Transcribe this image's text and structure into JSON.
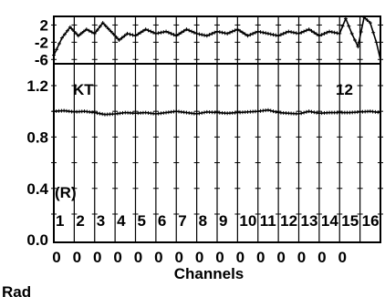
{
  "chart_data": [
    {
      "type": "line",
      "panel": "residuals",
      "ylim": [
        -7,
        4
      ],
      "yticks": [
        "2",
        "-2",
        "-6"
      ],
      "ytick_values": [
        2,
        -2,
        -6
      ],
      "series": [
        {
          "x": [
            0,
            0.4,
            0.8,
            1.2,
            1.6,
            2.0,
            2.4,
            2.8,
            3.2,
            3.6,
            4.0,
            4.5,
            5.0,
            5.5,
            6.0,
            6.5,
            7.0,
            7.5,
            8.0,
            8.5,
            9.0,
            9.5,
            10.0,
            10.5,
            11.0,
            11.5,
            12.0,
            12.5,
            13.0,
            13.5,
            14.0,
            14.3,
            14.6,
            14.9,
            15.2,
            15.5,
            15.8,
            16.0
          ],
          "y": [
            -5,
            -1,
            1.5,
            -0.5,
            1,
            0,
            2.5,
            0.5,
            -1.5,
            0,
            -0.5,
            1,
            0,
            0.5,
            -0.5,
            1,
            0,
            -0.5,
            0.5,
            0,
            1,
            -0.5,
            0.5,
            0,
            -0.5,
            0.5,
            0,
            1,
            -0.5,
            0.5,
            0,
            3.5,
            0,
            -3,
            3.8,
            2.5,
            -2,
            -6
          ]
        }
      ]
    },
    {
      "type": "line",
      "panel": "main",
      "title": "",
      "xlabel": "Channels",
      "ylabel": "",
      "xlim": [
        0,
        16
      ],
      "ylim": [
        -0.02,
        1.37
      ],
      "yticks": [
        "1.2",
        "0.8",
        "0.4",
        "0.0"
      ],
      "ytick_values": [
        1.2,
        0.8,
        0.4,
        0.0
      ],
      "xtick_labels": [
        "0",
        "0",
        "0",
        "0",
        "0",
        "0",
        "0",
        "0",
        "0",
        "0",
        "0",
        "0",
        "0",
        "0",
        "0"
      ],
      "channel_numbers": [
        "1",
        "2",
        "3",
        "4",
        "5",
        "6",
        "7",
        "8",
        "9",
        "10",
        "11",
        "12",
        "13",
        "14",
        "15",
        "16"
      ],
      "annotations": {
        "left": "KT",
        "right": "12",
        "corner": "(R)"
      },
      "series": [
        {
          "x": [
            0,
            0.5,
            1.0,
            1.5,
            2.0,
            2.5,
            3.0,
            3.5,
            4.0,
            4.5,
            5.0,
            5.5,
            6.0,
            6.5,
            7.0,
            7.5,
            8.0,
            8.5,
            9.0,
            9.5,
            10.0,
            10.5,
            11.0,
            11.5,
            12.0,
            12.5,
            13.0,
            13.5,
            14.0,
            14.5,
            15.0,
            15.5,
            16.0
          ],
          "y": [
            1.0,
            1.005,
            0.995,
            1.0,
            0.99,
            0.975,
            0.98,
            0.99,
            0.985,
            0.99,
            0.98,
            0.99,
            1.0,
            0.99,
            0.98,
            0.995,
            0.99,
            0.985,
            0.99,
            0.995,
            1.0,
            1.01,
            0.99,
            0.985,
            0.98,
            1.0,
            0.985,
            0.99,
            0.99,
            0.99,
            0.995,
            1.0,
            0.99
          ]
        }
      ]
    }
  ],
  "footer": {
    "label": "Rad"
  }
}
